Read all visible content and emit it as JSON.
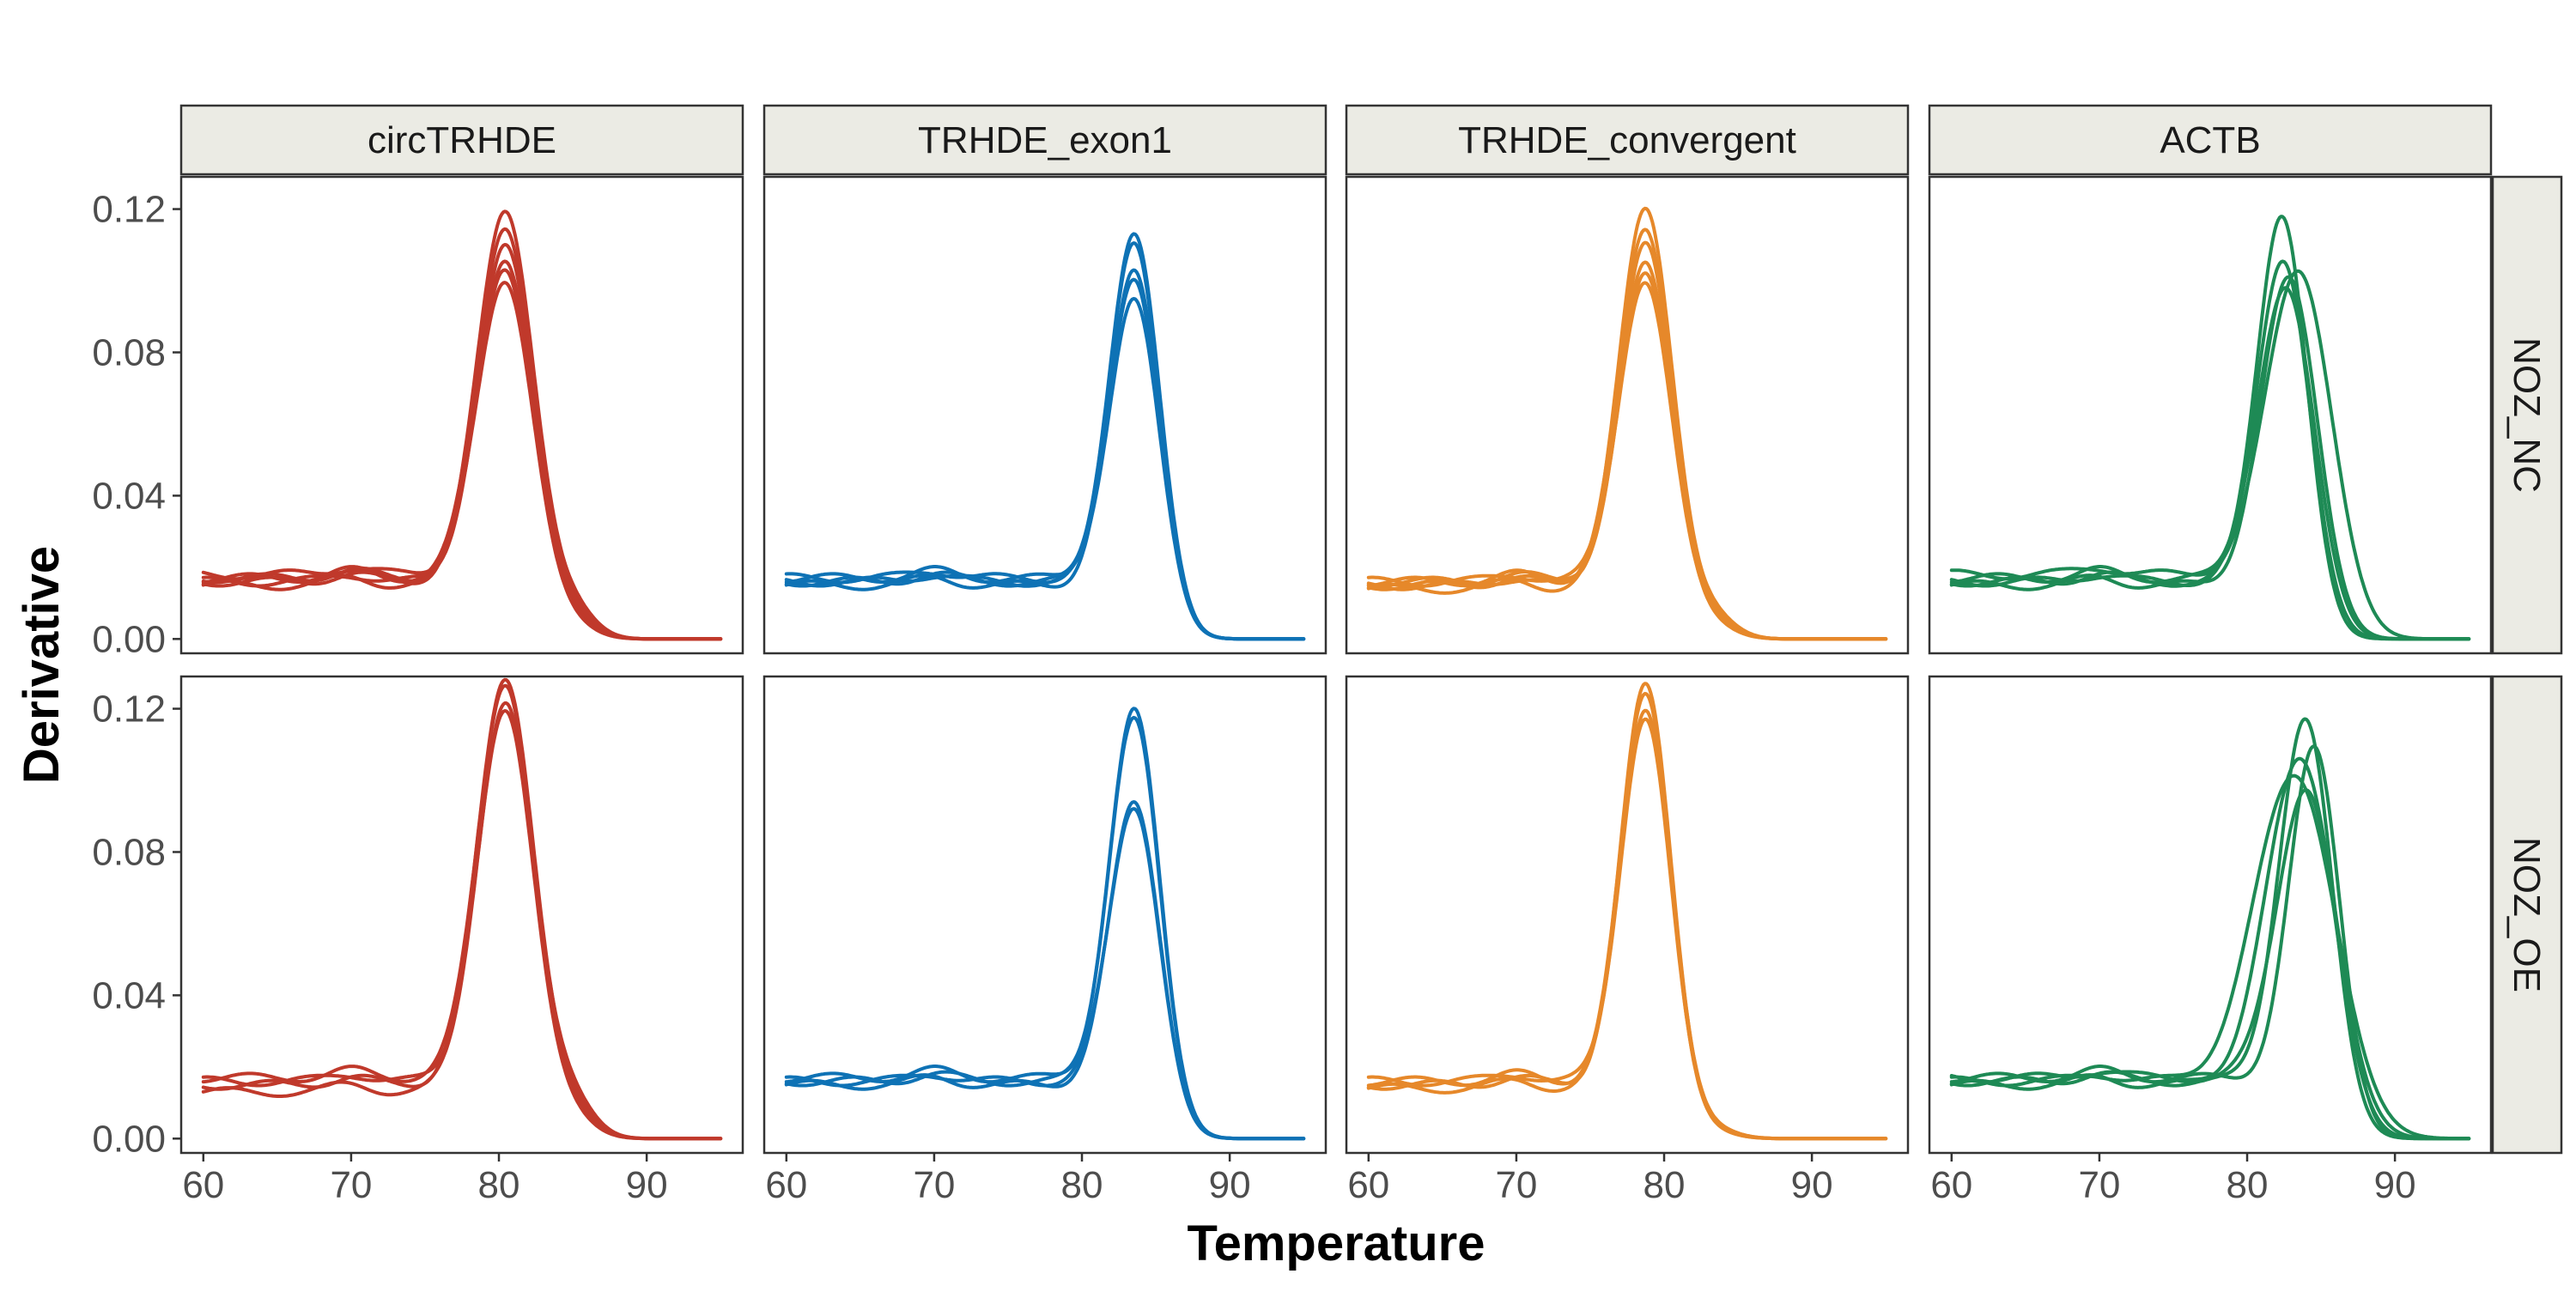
{
  "chart_data": {
    "type": "line",
    "xlabel": "Temperature",
    "ylabel": "Derivative",
    "xlim": [
      58.5,
      96.5
    ],
    "ylim": [
      -0.004,
      0.129
    ],
    "xticks": [
      60,
      70,
      80,
      90
    ],
    "xtick_labels": [
      "60",
      "70",
      "80",
      "90"
    ],
    "yticks": [
      0.0,
      0.04,
      0.08,
      0.12
    ],
    "ytick_labels": [
      "0.00",
      "0.04",
      "0.08",
      "0.12"
    ],
    "grid": false,
    "facet_columns": [
      "circTRHDE",
      "TRHDE_exon1",
      "TRHDE_convergent",
      "ACTB"
    ],
    "facet_rows": [
      "NOZ_NC",
      "NOZ_OE"
    ],
    "colors": {
      "circTRHDE": "#c0392b",
      "TRHDE_exon1": "#0e72b5",
      "TRHDE_convergent": "#e6882a",
      "ACTB": "#1e8a55"
    },
    "panels": [
      {
        "column": "circTRHDE",
        "row": "NOZ_NC",
        "peak_temperature": 80.5,
        "peaks": [
          0.115,
          0.11,
          0.106,
          0.101,
          0.098,
          0.095
        ],
        "shift": [
          0,
          0,
          0,
          0,
          0,
          0
        ],
        "width": [
          1.9,
          1.9,
          1.9,
          1.9,
          1.9,
          1.9
        ],
        "baseline": [
          0.016,
          0.017,
          0.015,
          0.016,
          0.018,
          0.017
        ],
        "shoulder": [
          0.008,
          0.006,
          0.009,
          0.005,
          0.007,
          0.004
        ]
      },
      {
        "column": "TRHDE_exon1",
        "row": "NOZ_NC",
        "peak_temperature": 83.6,
        "peaks": [
          0.109,
          0.106,
          0.099,
          0.096,
          0.091
        ],
        "shift": [
          0,
          0,
          0,
          0,
          0
        ],
        "width": [
          1.7,
          1.7,
          1.7,
          1.7,
          1.7
        ],
        "baseline": [
          0.016,
          0.017,
          0.015,
          0.017,
          0.016
        ],
        "shoulder": [
          0,
          0,
          0,
          0,
          0
        ]
      },
      {
        "column": "TRHDE_convergent",
        "row": "NOZ_NC",
        "peak_temperature": 78.8,
        "peaks": [
          0.116,
          0.11,
          0.107,
          0.101,
          0.098,
          0.095
        ],
        "shift": [
          0,
          0,
          0,
          0,
          0,
          0
        ],
        "width": [
          1.8,
          1.8,
          1.8,
          1.8,
          1.8,
          1.8
        ],
        "baseline": [
          0.015,
          0.016,
          0.014,
          0.016,
          0.015,
          0.016
        ],
        "shoulder": [
          0.006,
          0.005,
          0.007,
          0.004,
          0.006,
          0.005
        ]
      },
      {
        "column": "ACTB",
        "row": "NOZ_NC",
        "peak_temperature": 82.4,
        "peaks": [
          0.114,
          0.101,
          0.097,
          0.098,
          0.094
        ],
        "shift": [
          0,
          0.1,
          0.5,
          1.2,
          0.3
        ],
        "width": [
          1.7,
          1.8,
          1.9,
          2.2,
          1.9
        ],
        "baseline": [
          0.016,
          0.017,
          0.015,
          0.018,
          0.016
        ],
        "shoulder": [
          0,
          0,
          0,
          0,
          0
        ]
      },
      {
        "column": "circTRHDE",
        "row": "NOZ_OE",
        "peak_temperature": 80.5,
        "peaks": [
          0.124,
          0.122,
          0.118,
          0.115
        ],
        "shift": [
          0,
          0,
          0,
          0
        ],
        "width": [
          1.9,
          1.9,
          1.9,
          1.9
        ],
        "baseline": [
          0.015,
          0.017,
          0.013,
          0.016
        ],
        "shoulder": [
          0.009,
          0.007,
          0.011,
          0.006
        ]
      },
      {
        "column": "TRHDE_exon1",
        "row": "NOZ_OE",
        "peak_temperature": 83.6,
        "peaks": [
          0.116,
          0.113,
          0.09,
          0.088
        ],
        "shift": [
          0,
          0,
          0,
          0
        ],
        "width": [
          1.7,
          1.7,
          1.7,
          1.7
        ],
        "baseline": [
          0.016,
          0.017,
          0.015,
          0.016
        ],
        "shoulder": [
          0,
          0,
          0,
          0
        ]
      },
      {
        "column": "TRHDE_convergent",
        "row": "NOZ_OE",
        "peak_temperature": 78.8,
        "peaks": [
          0.123,
          0.12,
          0.116,
          0.113
        ],
        "shift": [
          0,
          0,
          0,
          0
        ],
        "width": [
          1.7,
          1.7,
          1.7,
          1.7
        ],
        "baseline": [
          0.015,
          0.016,
          0.014,
          0.016
        ],
        "shoulder": [
          0.002,
          0.003,
          0.002,
          0.003
        ]
      },
      {
        "column": "ACTB",
        "row": "NOZ_OE",
        "peak_temperature": 84.0,
        "peaks": [
          0.113,
          0.105,
          0.102,
          0.097,
          0.093
        ],
        "shift": [
          0,
          0.6,
          -0.3,
          -0.6,
          0.1
        ],
        "width": [
          1.8,
          1.7,
          2.3,
          2.7,
          2.0
        ],
        "baseline": [
          0.016,
          0.017,
          0.015,
          0.016,
          0.017
        ],
        "shoulder": [
          0,
          0,
          0,
          0,
          0
        ]
      }
    ]
  }
}
